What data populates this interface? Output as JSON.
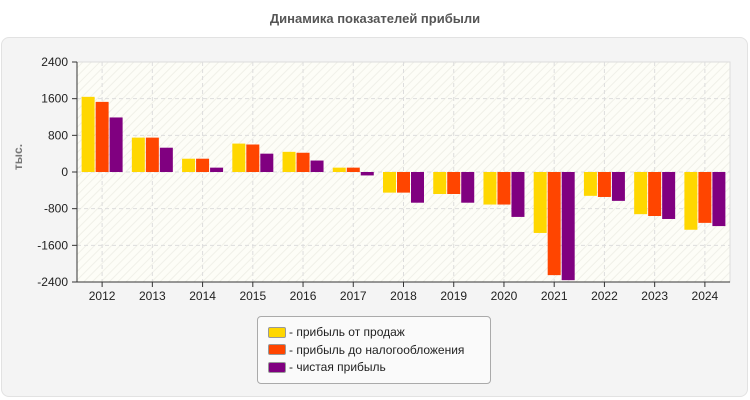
{
  "chart_data": {
    "type": "bar",
    "title": "Динамика показателей прибыли",
    "xlabel": "",
    "ylabel": "тыс.",
    "ylim": [
      -2400,
      2400
    ],
    "yticks": [
      2400,
      1600,
      800,
      0,
      -800,
      -1600,
      -2400
    ],
    "grid": true,
    "legend_placement": "bottom-center",
    "legend_separator": "- ",
    "categories": [
      "2012",
      "2013",
      "2014",
      "2015",
      "2016",
      "2017",
      "2018",
      "2019",
      "2020",
      "2021",
      "2022",
      "2023",
      "2024"
    ],
    "series": [
      {
        "name": "прибыль от продаж",
        "color": "#ffd700",
        "values": [
          1640,
          750,
          290,
          620,
          440,
          95,
          -450,
          -480,
          -710,
          -1330,
          -520,
          -920,
          -1260
        ]
      },
      {
        "name": "прибыль до налогообложения",
        "color": "#ff4500",
        "values": [
          1530,
          750,
          290,
          600,
          420,
          95,
          -450,
          -480,
          -710,
          -2250,
          -545,
          -960,
          -1110
        ]
      },
      {
        "name": "чистая прибыль",
        "color": "#800080",
        "values": [
          1190,
          530,
          95,
          400,
          250,
          -75,
          -670,
          -670,
          -980,
          -2360,
          -630,
          -1025,
          -1180
        ]
      }
    ]
  }
}
